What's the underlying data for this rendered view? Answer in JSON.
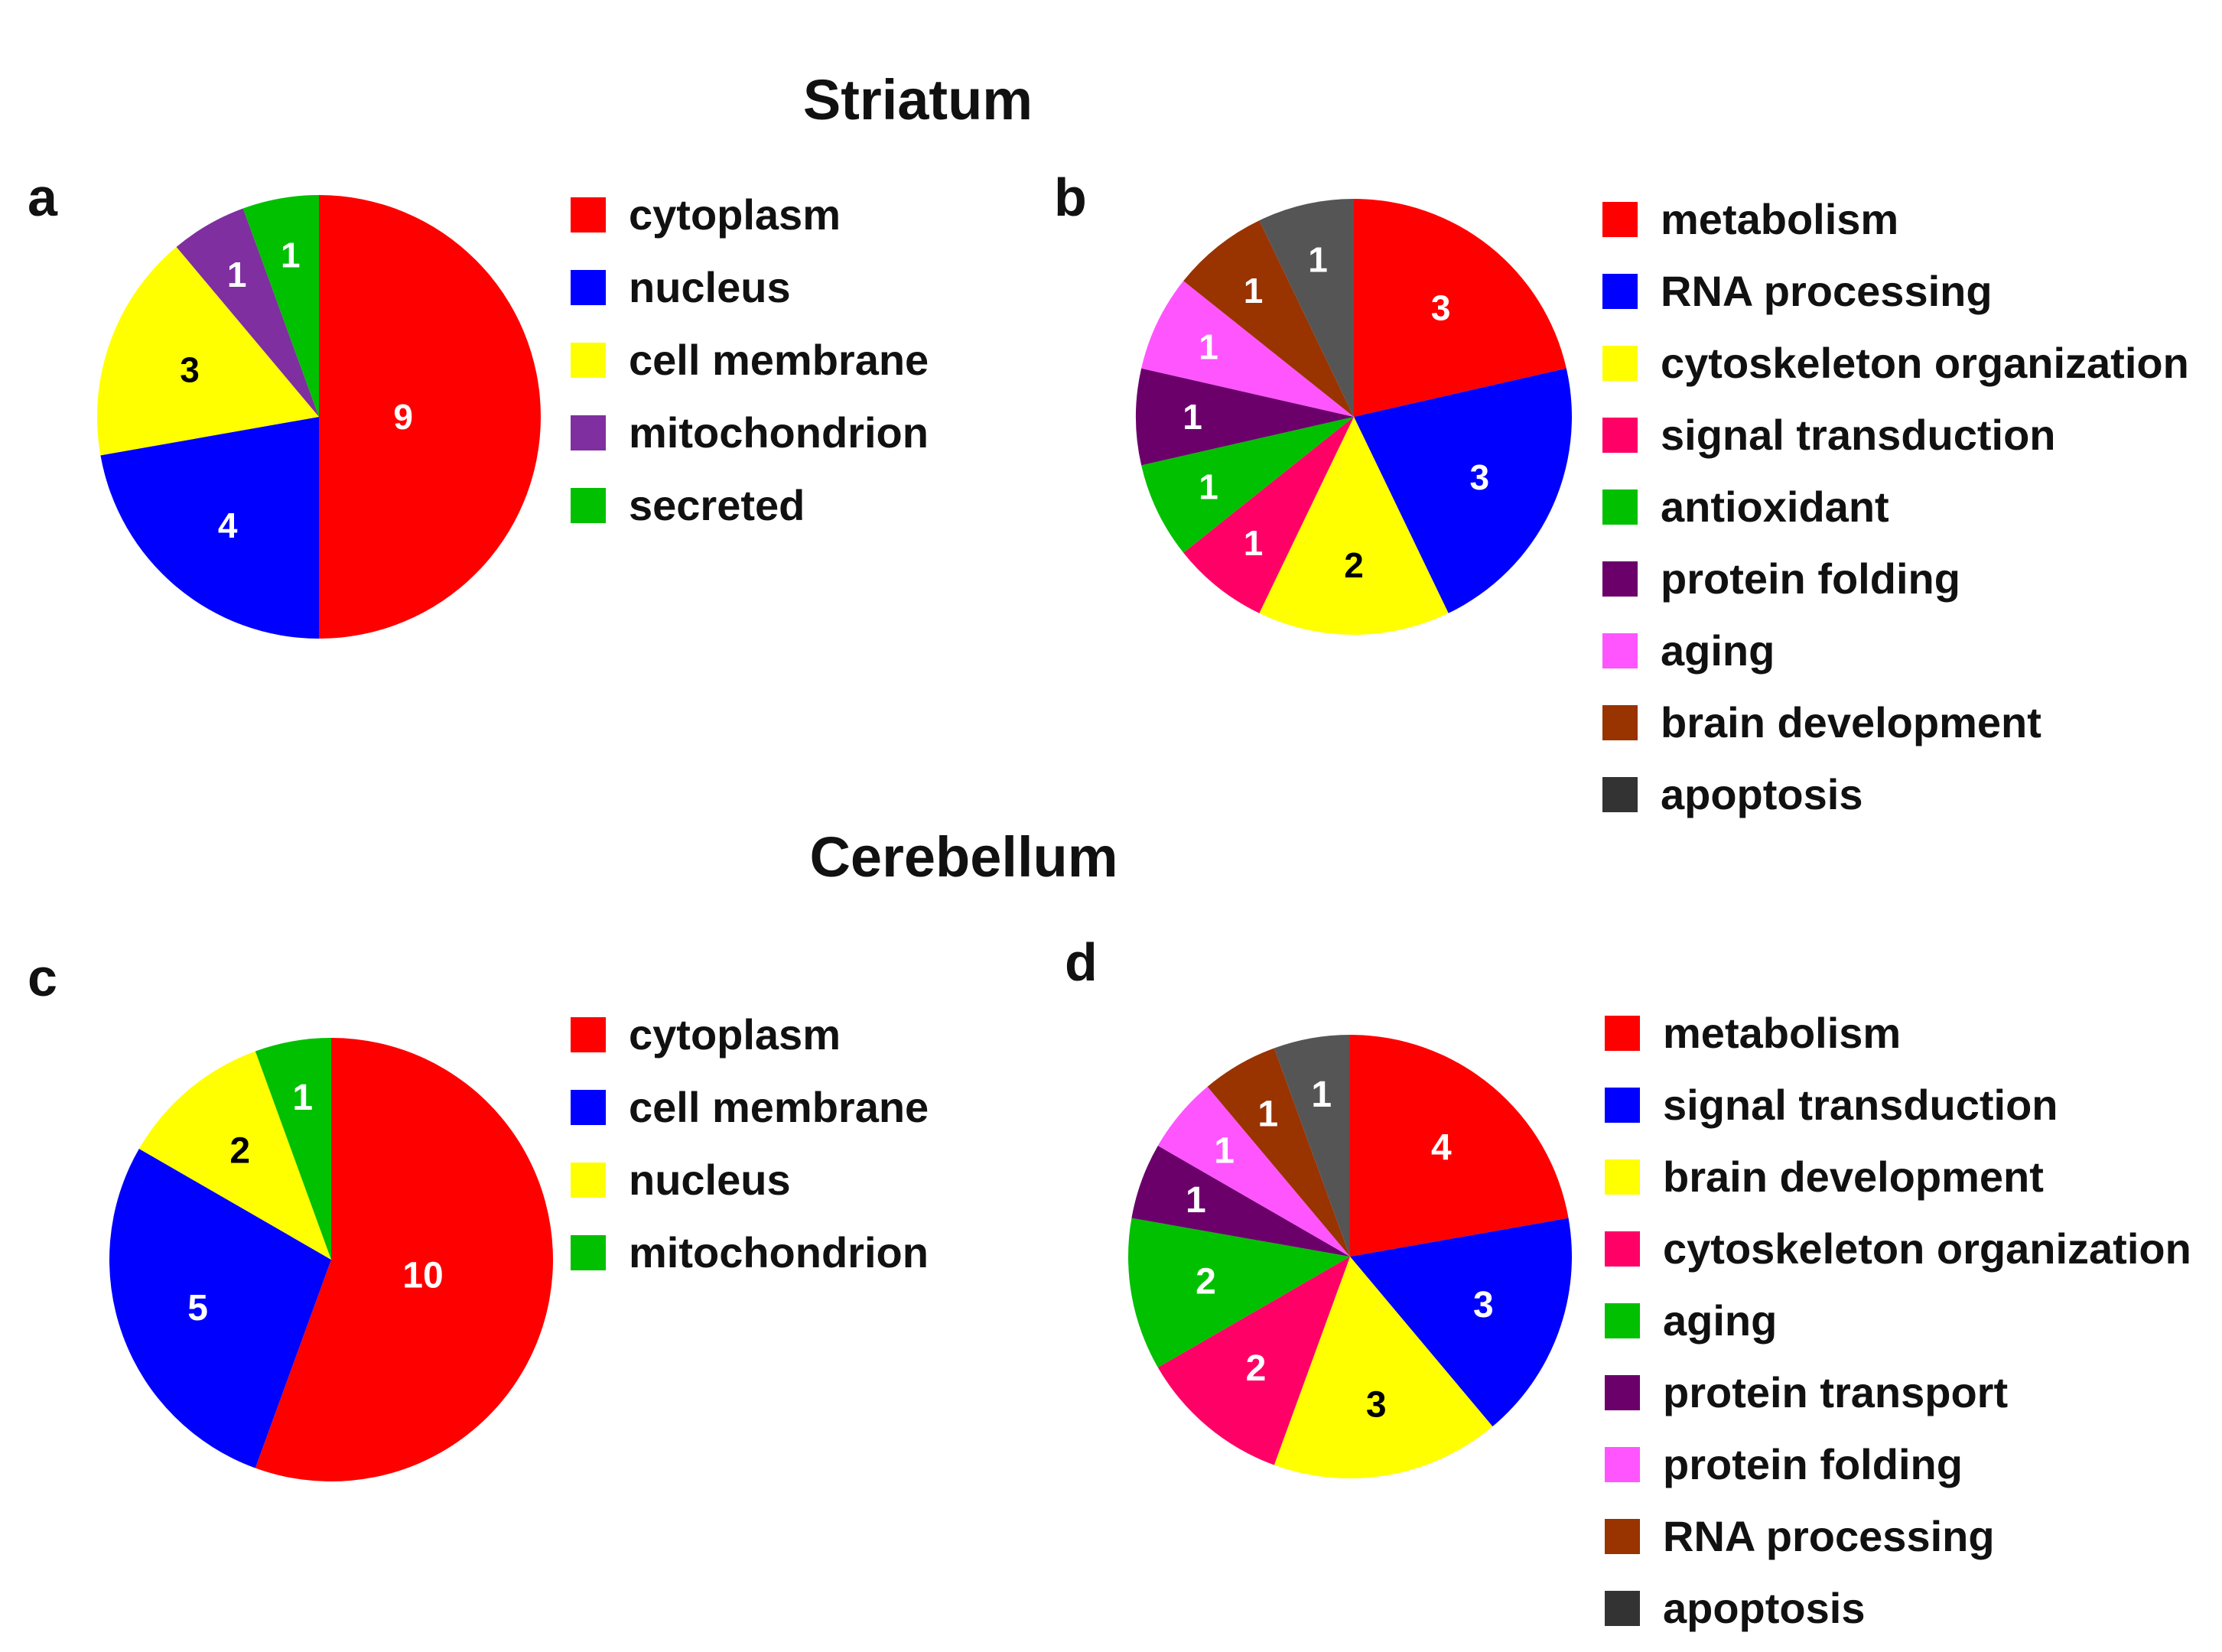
{
  "titles": {
    "striatum": "Striatum",
    "cerebellum": "Cerebellum"
  },
  "chart_data": [
    {
      "type": "pie",
      "panel": "a",
      "section": "Striatum",
      "categories": [
        "cytoplasm",
        "nucleus",
        "cell membrane",
        "mitochondrion",
        "secreted"
      ],
      "values": [
        9,
        4,
        3,
        1,
        1
      ],
      "colors": [
        "#ff0000",
        "#0000ff",
        "#ffff00",
        "#7f2f9f",
        "#00c000"
      ],
      "label_colors": [
        "#ffffff",
        "#ffffff",
        "#000000",
        "#ffffff",
        "#ffffff"
      ],
      "legend": [
        "cytoplasm",
        "nucleus",
        "cell membrane",
        "mitochondrion",
        "secreted"
      ],
      "legend_colors": [
        "#ff0000",
        "#0000ff",
        "#ffff00",
        "#7f2f9f",
        "#00c000"
      ]
    },
    {
      "type": "pie",
      "panel": "b",
      "section": "Striatum",
      "categories": [
        "metabolism",
        "RNA processing",
        "cytoskeleton organization",
        "signal transduction",
        "antioxidant",
        "protein folding",
        "aging",
        "brain development",
        "apoptosis"
      ],
      "values": [
        3,
        3,
        2,
        1,
        1,
        1,
        1,
        1,
        1
      ],
      "colors": [
        "#ff0000",
        "#0000ff",
        "#ffff00",
        "#ff0066",
        "#00c000",
        "#6b006b",
        "#ff55ff",
        "#993300",
        "#555555"
      ],
      "label_colors": [
        "#ffffff",
        "#ffffff",
        "#000000",
        "#ffffff",
        "#ffffff",
        "#ffffff",
        "#ffffff",
        "#ffffff",
        "#ffffff"
      ],
      "legend": [
        "metabolism",
        "RNA processing",
        "cytoskeleton organization",
        "signal transduction",
        "antioxidant",
        "protein folding",
        "aging",
        "brain development",
        "apoptosis"
      ],
      "legend_colors": [
        "#ff0000",
        "#0000ff",
        "#ffff00",
        "#ff0066",
        "#00c000",
        "#6b006b",
        "#ff55ff",
        "#993300",
        "#333333"
      ]
    },
    {
      "type": "pie",
      "panel": "c",
      "section": "Cerebellum",
      "categories": [
        "cytoplasm",
        "cell membrane",
        "nucleus",
        "mitochondrion"
      ],
      "values": [
        10,
        5,
        2,
        1
      ],
      "colors": [
        "#ff0000",
        "#0000ff",
        "#ffff00",
        "#00c000"
      ],
      "label_colors": [
        "#ffffff",
        "#ffffff",
        "#000000",
        "#ffffff"
      ],
      "legend": [
        "cytoplasm",
        "cell membrane",
        "nucleus",
        "mitochondrion"
      ],
      "legend_colors": [
        "#ff0000",
        "#0000ff",
        "#ffff00",
        "#00c000"
      ]
    },
    {
      "type": "pie",
      "panel": "d",
      "section": "Cerebellum",
      "categories": [
        "metabolism",
        "signal transduction",
        "brain development",
        "cytoskeleton organization",
        "aging",
        "protein transport",
        "protein folding",
        "RNA processing",
        "apoptosis"
      ],
      "values": [
        4,
        3,
        3,
        2,
        2,
        1,
        1,
        1,
        1
      ],
      "colors": [
        "#ff0000",
        "#0000ff",
        "#ffff00",
        "#ff0066",
        "#00c000",
        "#6b006b",
        "#ff55ff",
        "#993300",
        "#555555"
      ],
      "label_colors": [
        "#ffffff",
        "#ffffff",
        "#000000",
        "#ffffff",
        "#ffffff",
        "#ffffff",
        "#ffffff",
        "#ffffff",
        "#ffffff"
      ],
      "legend": [
        "metabolism",
        "signal transduction",
        "brain development",
        "cytoskeleton organization",
        "aging",
        "protein transport",
        "protein folding",
        "RNA processing",
        "apoptosis"
      ],
      "legend_colors": [
        "#ff0000",
        "#0000ff",
        "#ffff00",
        "#ff0066",
        "#00c000",
        "#6b006b",
        "#ff55ff",
        "#993300",
        "#333333"
      ]
    }
  ]
}
